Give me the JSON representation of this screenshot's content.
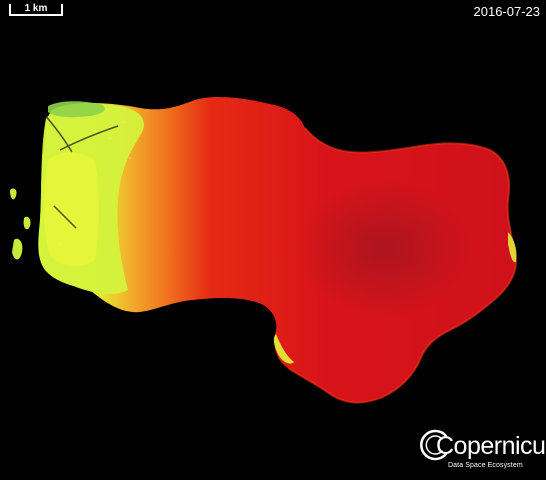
{
  "scale_bar": {
    "label": "1 km"
  },
  "acquisition_date": "2016-07-23",
  "logo": {
    "name": "Copernicus",
    "subtitle": "Data Space Ecosystem"
  },
  "colors": {
    "background": "#000000",
    "shallow_edge": "#d6f23a",
    "transition": "#f07a1a",
    "open_water": "#e01010",
    "deep_center": "#b3151c",
    "text": "#ffffff"
  }
}
